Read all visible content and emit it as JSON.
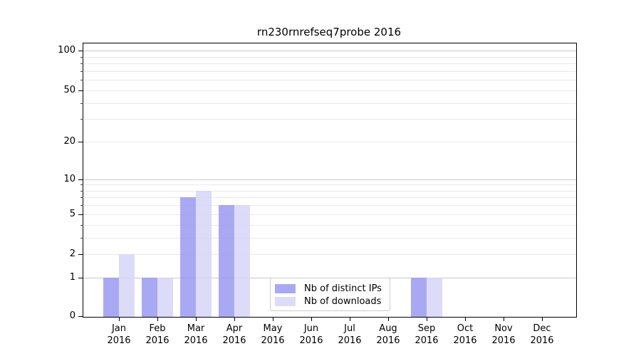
{
  "chart_data": {
    "type": "bar",
    "title": "rn230rnrefseq7probe 2016",
    "year_label": "2016",
    "categories": [
      "Jan",
      "Feb",
      "Mar",
      "Apr",
      "May",
      "Jun",
      "Jul",
      "Aug",
      "Sep",
      "Oct",
      "Nov",
      "Dec"
    ],
    "series": [
      {
        "name": "Nb of distinct IPs",
        "color": "#a9a9f3",
        "fill_rgba": "rgba(154,154,241,0.85)",
        "values": [
          1,
          1,
          7,
          6,
          0,
          0,
          0,
          0,
          1,
          0,
          0,
          0
        ]
      },
      {
        "name": "Nb of downloads",
        "color": "#dcdcf8",
        "fill_rgba": "rgba(214,214,247,0.85)",
        "values": [
          2,
          1,
          8,
          6,
          0,
          0,
          0,
          0,
          1,
          0,
          0,
          0
        ]
      }
    ],
    "xlabel": "",
    "ylabel": "",
    "yscale": "log10(1+v)",
    "yticks": [
      0,
      1,
      2,
      5,
      10,
      20,
      50,
      100
    ],
    "yticks_minor": [
      3,
      4,
      6,
      7,
      8,
      9,
      30,
      40,
      60,
      70,
      80,
      90
    ],
    "ylim": [
      0,
      113
    ],
    "grid": "horizontal",
    "legend_position": "lower-center",
    "colors": {
      "major_grid": "#c9c9c9",
      "minor_grid": "#e9e9e9",
      "axis": "#000000",
      "background": "#ffffff"
    }
  }
}
